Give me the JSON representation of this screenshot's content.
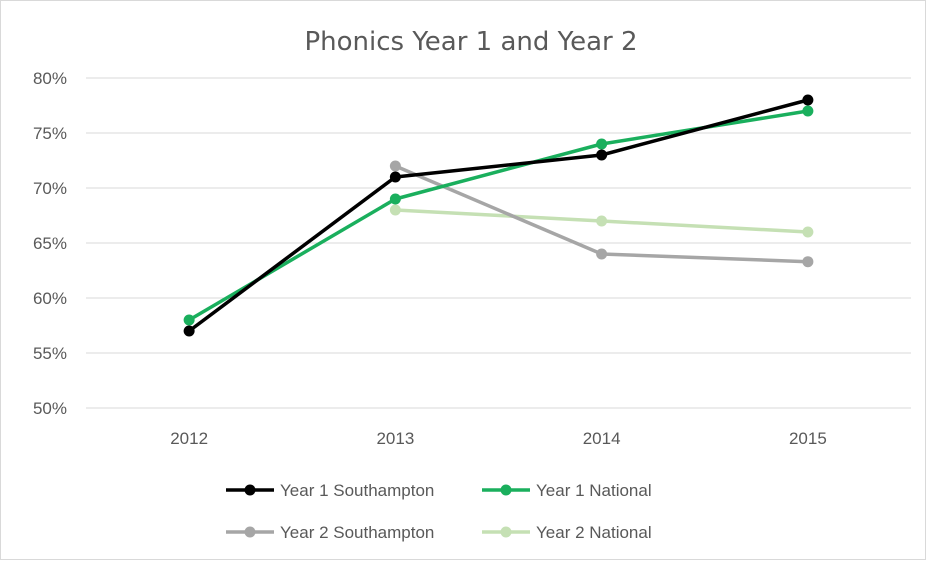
{
  "chart_data": {
    "type": "line",
    "title": "Phonics Year 1 and Year 2",
    "xlabel": "",
    "ylabel": "",
    "categories": [
      "2012",
      "2013",
      "2014",
      "2015"
    ],
    "ylim": [
      0.5,
      0.8
    ],
    "yticks": [
      0.5,
      0.55,
      0.6,
      0.65,
      0.7,
      0.75,
      0.8
    ],
    "ytick_labels": [
      "50%",
      "55%",
      "60%",
      "65%",
      "70%",
      "75%",
      "80%"
    ],
    "grid": true,
    "legend_position": "bottom",
    "series": [
      {
        "name": "Year 1 Southampton",
        "color": "#000000",
        "values": [
          0.57,
          0.71,
          0.73,
          0.78
        ]
      },
      {
        "name": "Year 1 National",
        "color": "#1aaf5d",
        "values": [
          0.58,
          0.69,
          0.74,
          0.77
        ]
      },
      {
        "name": "Year 2 Southampton",
        "color": "#a6a6a6",
        "values": [
          null,
          0.72,
          0.64,
          0.633
        ]
      },
      {
        "name": "Year 2 National",
        "color": "#c5e0b4",
        "values": [
          null,
          0.68,
          0.67,
          0.66
        ]
      }
    ]
  }
}
